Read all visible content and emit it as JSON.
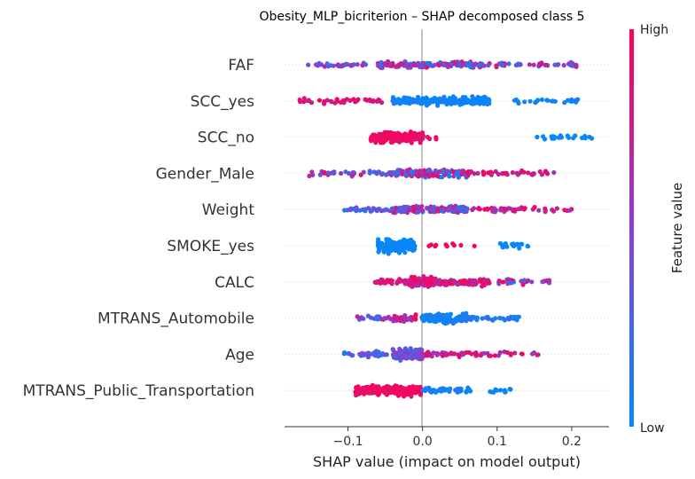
{
  "chart_data": {
    "type": "scatter",
    "subtype": "shap-beeswarm",
    "title": "Obesity_MLP_bicriterion – SHAP decomposed class 5",
    "xlabel": "SHAP value (impact on model output)",
    "ylabel": "",
    "xlim": [
      -0.185,
      0.25
    ],
    "xticks": [
      -0.1,
      0.0,
      0.1,
      0.2
    ],
    "xtick_labels": [
      "−0.1",
      "0.0",
      "0.1",
      "0.2"
    ],
    "features": [
      "FAF",
      "SCC_yes",
      "SCC_no",
      "Gender_Male",
      "Weight",
      "SMOKE_yes",
      "CALC",
      "MTRANS_Automobile",
      "Age",
      "MTRANS_Public_Transportation"
    ],
    "colorbar": {
      "label": "Feature value",
      "high_label": "High",
      "low_label": "Low",
      "low_color": "#008bfb",
      "high_color": "#ff0052"
    },
    "zero_line": 0.0,
    "grid": false,
    "distributions": [
      {
        "feature": "FAF",
        "segments": [
          {
            "from": -0.165,
            "to": -0.06,
            "n": 30,
            "low": 0.2,
            "high": 0.7
          },
          {
            "from": -0.06,
            "to": 0.08,
            "n": 130,
            "low": 0.1,
            "high": 0.95
          },
          {
            "from": 0.08,
            "to": 0.21,
            "n": 40,
            "low": 0.2,
            "high": 0.85
          }
        ]
      },
      {
        "feature": "SCC_yes",
        "segments": [
          {
            "from": -0.165,
            "to": -0.05,
            "n": 40,
            "low": 0.75,
            "high": 1.0
          },
          {
            "from": -0.04,
            "to": 0.09,
            "n": 200,
            "low": 0.0,
            "high": 0.1
          },
          {
            "from": 0.12,
            "to": 0.21,
            "n": 25,
            "low": 0.0,
            "high": 0.1
          }
        ]
      },
      {
        "feature": "SCC_no",
        "segments": [
          {
            "from": -0.07,
            "to": 0.0,
            "n": 190,
            "low": 0.85,
            "high": 1.0
          },
          {
            "from": 0.0,
            "to": 0.02,
            "n": 6,
            "low": 0.85,
            "high": 1.0
          },
          {
            "from": 0.15,
            "to": 0.23,
            "n": 22,
            "low": 0.0,
            "high": 0.05
          }
        ]
      },
      {
        "feature": "Gender_Male",
        "segments": [
          {
            "from": -0.155,
            "to": -0.04,
            "n": 40,
            "low": 0.05,
            "high": 0.95
          },
          {
            "from": -0.04,
            "to": 0.06,
            "n": 130,
            "low": 0.05,
            "high": 0.95
          },
          {
            "from": 0.06,
            "to": 0.18,
            "n": 40,
            "low": 0.6,
            "high": 1.0
          }
        ]
      },
      {
        "feature": "Weight",
        "segments": [
          {
            "from": -0.105,
            "to": -0.04,
            "n": 30,
            "low": 0.05,
            "high": 0.5
          },
          {
            "from": -0.04,
            "to": 0.06,
            "n": 150,
            "low": 0.1,
            "high": 0.85
          },
          {
            "from": 0.06,
            "to": 0.2,
            "n": 50,
            "low": 0.55,
            "high": 1.0
          }
        ]
      },
      {
        "feature": "SMOKE_yes",
        "segments": [
          {
            "from": -0.06,
            "to": -0.01,
            "n": 170,
            "low": 0.0,
            "high": 0.05
          },
          {
            "from": 0.0,
            "to": 0.02,
            "n": 4,
            "low": 0.9,
            "high": 1.0
          },
          {
            "from": 0.03,
            "to": 0.07,
            "n": 6,
            "low": 0.9,
            "high": 1.0
          },
          {
            "from": 0.1,
            "to": 0.145,
            "n": 20,
            "low": 0.0,
            "high": 0.05
          }
        ]
      },
      {
        "feature": "CALC",
        "segments": [
          {
            "from": -0.065,
            "to": 0.0,
            "n": 50,
            "low": 0.7,
            "high": 1.0
          },
          {
            "from": -0.02,
            "to": 0.02,
            "n": 100,
            "low": 0.55,
            "high": 1.0
          },
          {
            "from": 0.02,
            "to": 0.09,
            "n": 80,
            "low": 0.6,
            "high": 1.0
          },
          {
            "from": 0.1,
            "to": 0.17,
            "n": 30,
            "low": 0.1,
            "high": 1.0
          }
        ]
      },
      {
        "feature": "MTRANS_Automobile",
        "segments": [
          {
            "from": -0.09,
            "to": -0.04,
            "n": 20,
            "low": 0.05,
            "high": 0.7
          },
          {
            "from": -0.04,
            "to": 0.0,
            "n": 40,
            "low": 0.5,
            "high": 1.0
          },
          {
            "from": 0.0,
            "to": 0.06,
            "n": 140,
            "low": 0.0,
            "high": 0.15
          },
          {
            "from": 0.06,
            "to": 0.13,
            "n": 40,
            "low": 0.0,
            "high": 0.3
          }
        ]
      },
      {
        "feature": "Age",
        "segments": [
          {
            "from": -0.105,
            "to": -0.04,
            "n": 40,
            "low": 0.05,
            "high": 0.5
          },
          {
            "from": -0.04,
            "to": 0.0,
            "n": 120,
            "low": 0.2,
            "high": 0.6
          },
          {
            "from": 0.0,
            "to": 0.08,
            "n": 50,
            "low": 0.5,
            "high": 1.0
          },
          {
            "from": 0.08,
            "to": 0.165,
            "n": 18,
            "low": 0.5,
            "high": 1.0
          }
        ]
      },
      {
        "feature": "MTRANS_Public_Transportation",
        "segments": [
          {
            "from": -0.09,
            "to": 0.0,
            "n": 210,
            "low": 0.85,
            "high": 1.0
          },
          {
            "from": 0.0,
            "to": 0.07,
            "n": 50,
            "low": 0.0,
            "high": 0.15
          },
          {
            "from": 0.09,
            "to": 0.12,
            "n": 12,
            "low": 0.0,
            "high": 0.05
          }
        ]
      }
    ]
  }
}
